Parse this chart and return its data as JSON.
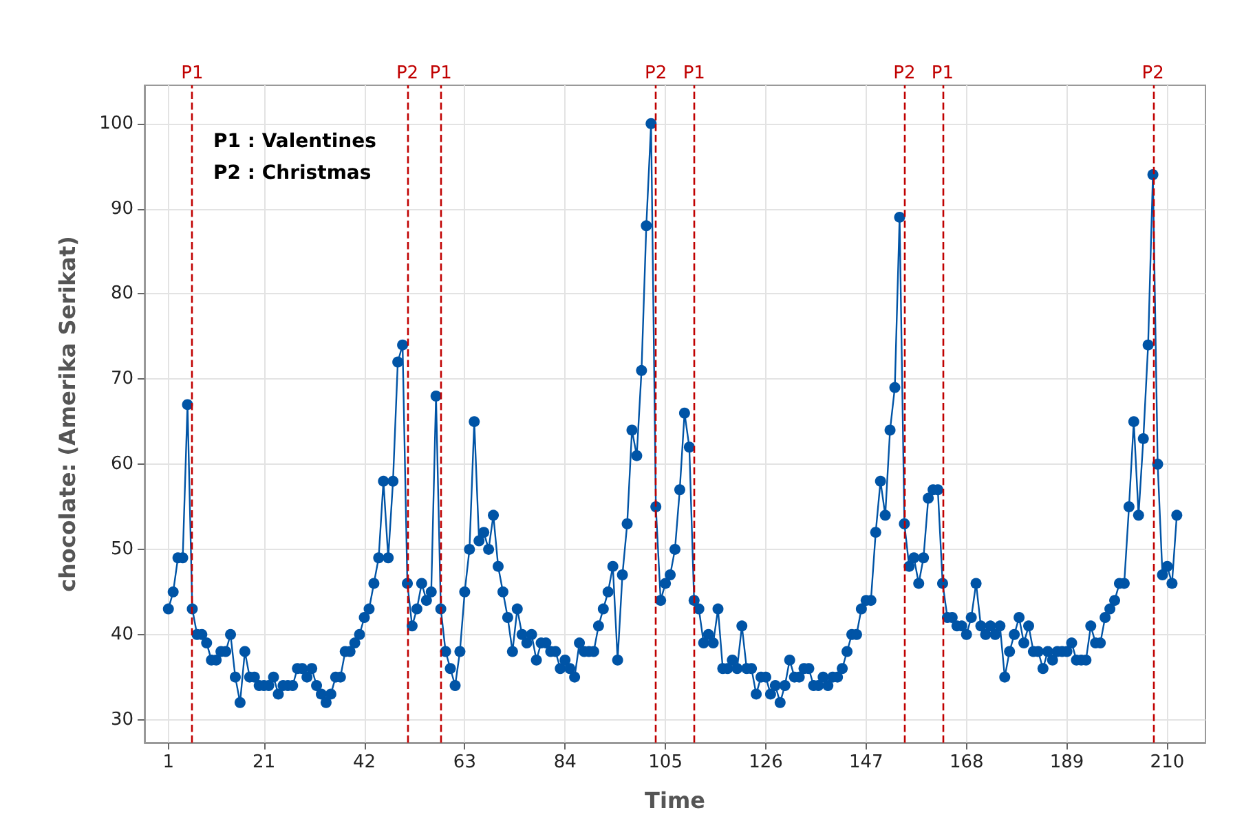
{
  "chart_data": {
    "type": "line",
    "xlabel": "Time",
    "ylabel": "chocolate: (Amerika Serikat)",
    "annotations": [
      "P1 : Valentines",
      "P2 : Christmas"
    ],
    "x": [
      1,
      2,
      3,
      4,
      5,
      6,
      7,
      8,
      9,
      10,
      11,
      12,
      13,
      14,
      15,
      16,
      17,
      18,
      19,
      20,
      21,
      22,
      23,
      24,
      25,
      26,
      27,
      28,
      29,
      30,
      31,
      32,
      33,
      34,
      35,
      36,
      37,
      38,
      39,
      40,
      41,
      42,
      43,
      44,
      45,
      46,
      47,
      48,
      49,
      50,
      51,
      52,
      53,
      54,
      55,
      56,
      57,
      58,
      59,
      60,
      61,
      62,
      63,
      64,
      65,
      66,
      67,
      68,
      69,
      70,
      71,
      72,
      73,
      74,
      75,
      76,
      77,
      78,
      79,
      80,
      81,
      82,
      83,
      84,
      85,
      86,
      87,
      88,
      89,
      90,
      91,
      92,
      93,
      94,
      95,
      96,
      97,
      98,
      99,
      100,
      101,
      102,
      103,
      104,
      105,
      106,
      107,
      108,
      109,
      110,
      111,
      112,
      113,
      114,
      115,
      116,
      117,
      118,
      119,
      120,
      121,
      122,
      123,
      124,
      125,
      126,
      127,
      128,
      129,
      130,
      131,
      132,
      133,
      134,
      135,
      136,
      137,
      138,
      139,
      140,
      141,
      142,
      143,
      144,
      145,
      146,
      147,
      148,
      149,
      150,
      151,
      152,
      153,
      154,
      155,
      156,
      157,
      158,
      159,
      160,
      161,
      162,
      163,
      164,
      165,
      166,
      167,
      168,
      169,
      170,
      171,
      172,
      173,
      174,
      175,
      176,
      177,
      178,
      179,
      180,
      181,
      182,
      183,
      184,
      185,
      186,
      187,
      188,
      189,
      190,
      191,
      192,
      193,
      194,
      195,
      196,
      197,
      198,
      199,
      200,
      201,
      202,
      203,
      204,
      205,
      206,
      207,
      208,
      209,
      210,
      211,
      212
    ],
    "series": [
      {
        "color": "#0054a6",
        "values": [
          43,
          45,
          49,
          49,
          67,
          43,
          40,
          40,
          39,
          37,
          37,
          38,
          38,
          40,
          35,
          32,
          38,
          35,
          35,
          34,
          34,
          34,
          35,
          33,
          34,
          34,
          34,
          36,
          36,
          35,
          36,
          34,
          33,
          32,
          33,
          35,
          35,
          38,
          38,
          39,
          40,
          42,
          43,
          46,
          49,
          58,
          49,
          58,
          72,
          74,
          46,
          41,
          43,
          46,
          44,
          45,
          68,
          43,
          38,
          36,
          34,
          38,
          45,
          50,
          65,
          51,
          52,
          50,
          54,
          48,
          45,
          42,
          38,
          43,
          40,
          39,
          40,
          37,
          39,
          39,
          38,
          38,
          36,
          37,
          36,
          35,
          39,
          38,
          38,
          38,
          41,
          43,
          45,
          48,
          37,
          47,
          53,
          64,
          61,
          71,
          88,
          100,
          55,
          44,
          46,
          47,
          50,
          57,
          66,
          62,
          44,
          43,
          39,
          40,
          39,
          43,
          36,
          36,
          37,
          36,
          41,
          36,
          36,
          33,
          35,
          35,
          33,
          34,
          32,
          34,
          37,
          35,
          35,
          36,
          36,
          34,
          34,
          35,
          34,
          35,
          35,
          36,
          38,
          40,
          40,
          43,
          44,
          44,
          52,
          58,
          54,
          64,
          69,
          89,
          53,
          48,
          49,
          46,
          49,
          56,
          57,
          57,
          46,
          42,
          42,
          41,
          41,
          40,
          42,
          46,
          41,
          40,
          41,
          40,
          41,
          35,
          38,
          40,
          42,
          39,
          41,
          38,
          38,
          36,
          38,
          37,
          38,
          38,
          38,
          39,
          37,
          37,
          37,
          41,
          39,
          39,
          42,
          43,
          44,
          46,
          46,
          55,
          65,
          54,
          63,
          74,
          94,
          60,
          47,
          48,
          46,
          54
        ]
      }
    ],
    "xlim": [
      -4,
      218
    ],
    "xticks": [
      1,
      21,
      42,
      63,
      84,
      105,
      126,
      147,
      168,
      189,
      210
    ],
    "ylim": [
      27.3,
      104.5
    ],
    "yticks": [
      30,
      40,
      50,
      60,
      70,
      80,
      90,
      100
    ],
    "ref_lines": [
      {
        "axis": "x",
        "value": 6,
        "label": "P1",
        "color": "#c00000",
        "line_style": "dashed"
      },
      {
        "axis": "x",
        "value": 51,
        "label": "P2",
        "color": "#c00000",
        "line_style": "dashed"
      },
      {
        "axis": "x",
        "value": 58,
        "label": "P1",
        "color": "#c00000",
        "line_style": "dashed"
      },
      {
        "axis": "x",
        "value": 103,
        "label": "P2",
        "color": "#c00000",
        "line_style": "dashed"
      },
      {
        "axis": "x",
        "value": 111,
        "label": "P1",
        "color": "#c00000",
        "line_style": "dashed"
      },
      {
        "axis": "x",
        "value": 155,
        "label": "P2",
        "color": "#c00000",
        "line_style": "dashed"
      },
      {
        "axis": "x",
        "value": 163,
        "label": "P1",
        "color": "#c00000",
        "line_style": "dashed"
      },
      {
        "axis": "x",
        "value": 207,
        "label": "P2",
        "color": "#c00000",
        "line_style": "dashed"
      }
    ],
    "grid": true,
    "marker": "circle",
    "line_style": "solid"
  }
}
